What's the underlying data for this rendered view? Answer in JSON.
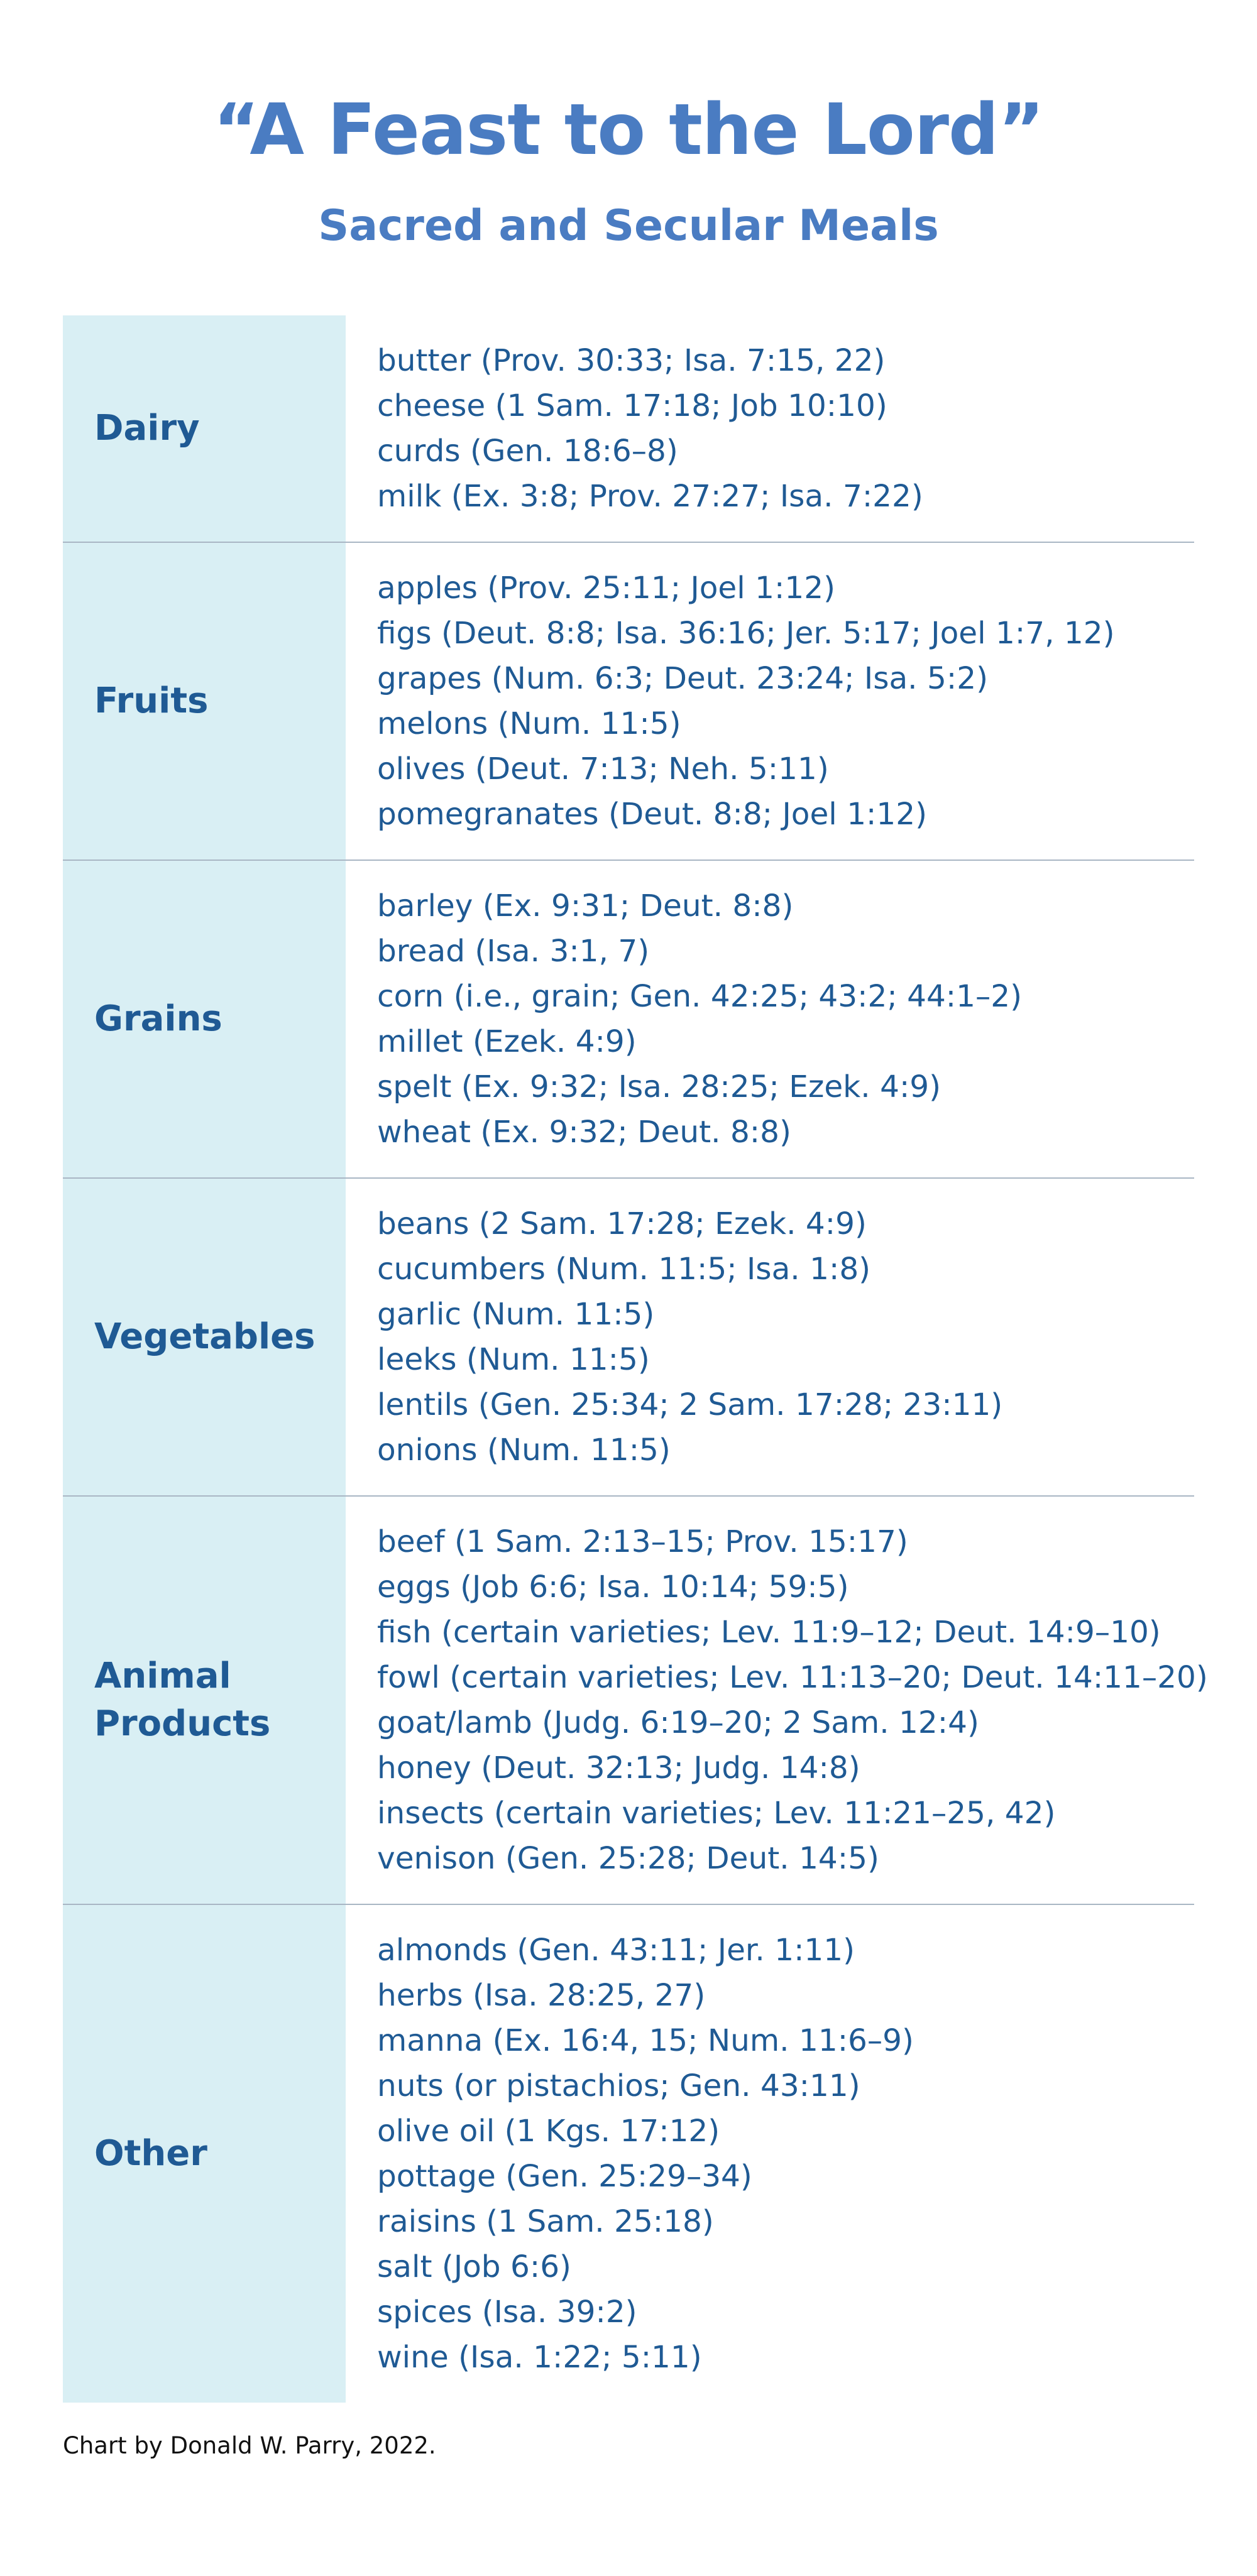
{
  "header": {
    "title": "“A Feast to the Lord”",
    "subtitle": "Sacred and Secular Meals"
  },
  "table": {
    "rows": [
      {
        "category": "Dairy",
        "items": [
          "butter (Prov. 30:33; Isa. 7:15, 22)",
          "cheese (1 Sam. 17:18; Job 10:10)",
          "curds (Gen. 18:6–8)",
          "milk (Ex. 3:8; Prov. 27:27; Isa. 7:22)"
        ]
      },
      {
        "category": "Fruits",
        "items": [
          "apples (Prov. 25:11; Joel 1:12)",
          "figs (Deut. 8:8; Isa. 36:16; Jer. 5:17; Joel 1:7, 12)",
          "grapes (Num. 6:3; Deut. 23:24; Isa. 5:2)",
          "melons (Num. 11:5)",
          "olives (Deut. 7:13; Neh. 5:11)",
          "pomegranates (Deut. 8:8; Joel 1:12)"
        ]
      },
      {
        "category": "Grains",
        "items": [
          "barley (Ex. 9:31; Deut. 8:8)",
          "bread (Isa. 3:1, 7)",
          "corn (i.e., grain; Gen. 42:25; 43:2; 44:1–2)",
          "millet (Ezek. 4:9)",
          "spelt (Ex. 9:32; Isa. 28:25; Ezek. 4:9)",
          "wheat (Ex. 9:32; Deut. 8:8)"
        ]
      },
      {
        "category": "Vegetables",
        "items": [
          "beans (2 Sam. 17:28; Ezek. 4:9)",
          "cucumbers (Num. 11:5; Isa. 1:8)",
          "garlic (Num. 11:5)",
          "leeks (Num. 11:5)",
          "lentils (Gen. 25:34; 2 Sam. 17:28; 23:11)",
          "onions (Num. 11:5)"
        ]
      },
      {
        "category": "Animal\nProducts",
        "items": [
          "beef (1 Sam. 2:13–15; Prov. 15:17)",
          "eggs (Job 6:6; Isa. 10:14; 59:5)",
          "fish (certain varieties; Lev. 11:9–12; Deut. 14:9–10)",
          "fowl (certain varieties; Lev. 11:13–20; Deut. 14:11–20)",
          "goat/lamb (Judg. 6:19–20; 2 Sam. 12:4)",
          "honey (Deut. 32:13; Judg. 14:8)",
          "insects (certain varieties; Lev. 11:21–25, 42)",
          "venison (Gen. 25:28; Deut. 14:5)"
        ]
      },
      {
        "category": "Other",
        "items": [
          "almonds (Gen. 43:11; Jer. 1:11)",
          "herbs (Isa. 28:25, 27)",
          "manna (Ex. 16:4, 15; Num. 11:6–9)",
          "nuts (or pistachios; Gen. 43:11)",
          "olive oil (1 Kgs. 17:12)",
          "pottage (Gen. 25:29–34)",
          "raisins (1 Sam. 25:18)",
          "salt (Job 6:6)",
          "spices (Isa. 39:2)",
          "wine (Isa. 1:22; 5:11)"
        ]
      }
    ]
  },
  "footer": {
    "credit": "Chart by Donald W. Parry, 2022."
  },
  "colors": {
    "heading": "#4a7cc2",
    "text": "#1f5a94",
    "category_background": "#d9eff4",
    "row_divider": "#a9b6c4"
  }
}
